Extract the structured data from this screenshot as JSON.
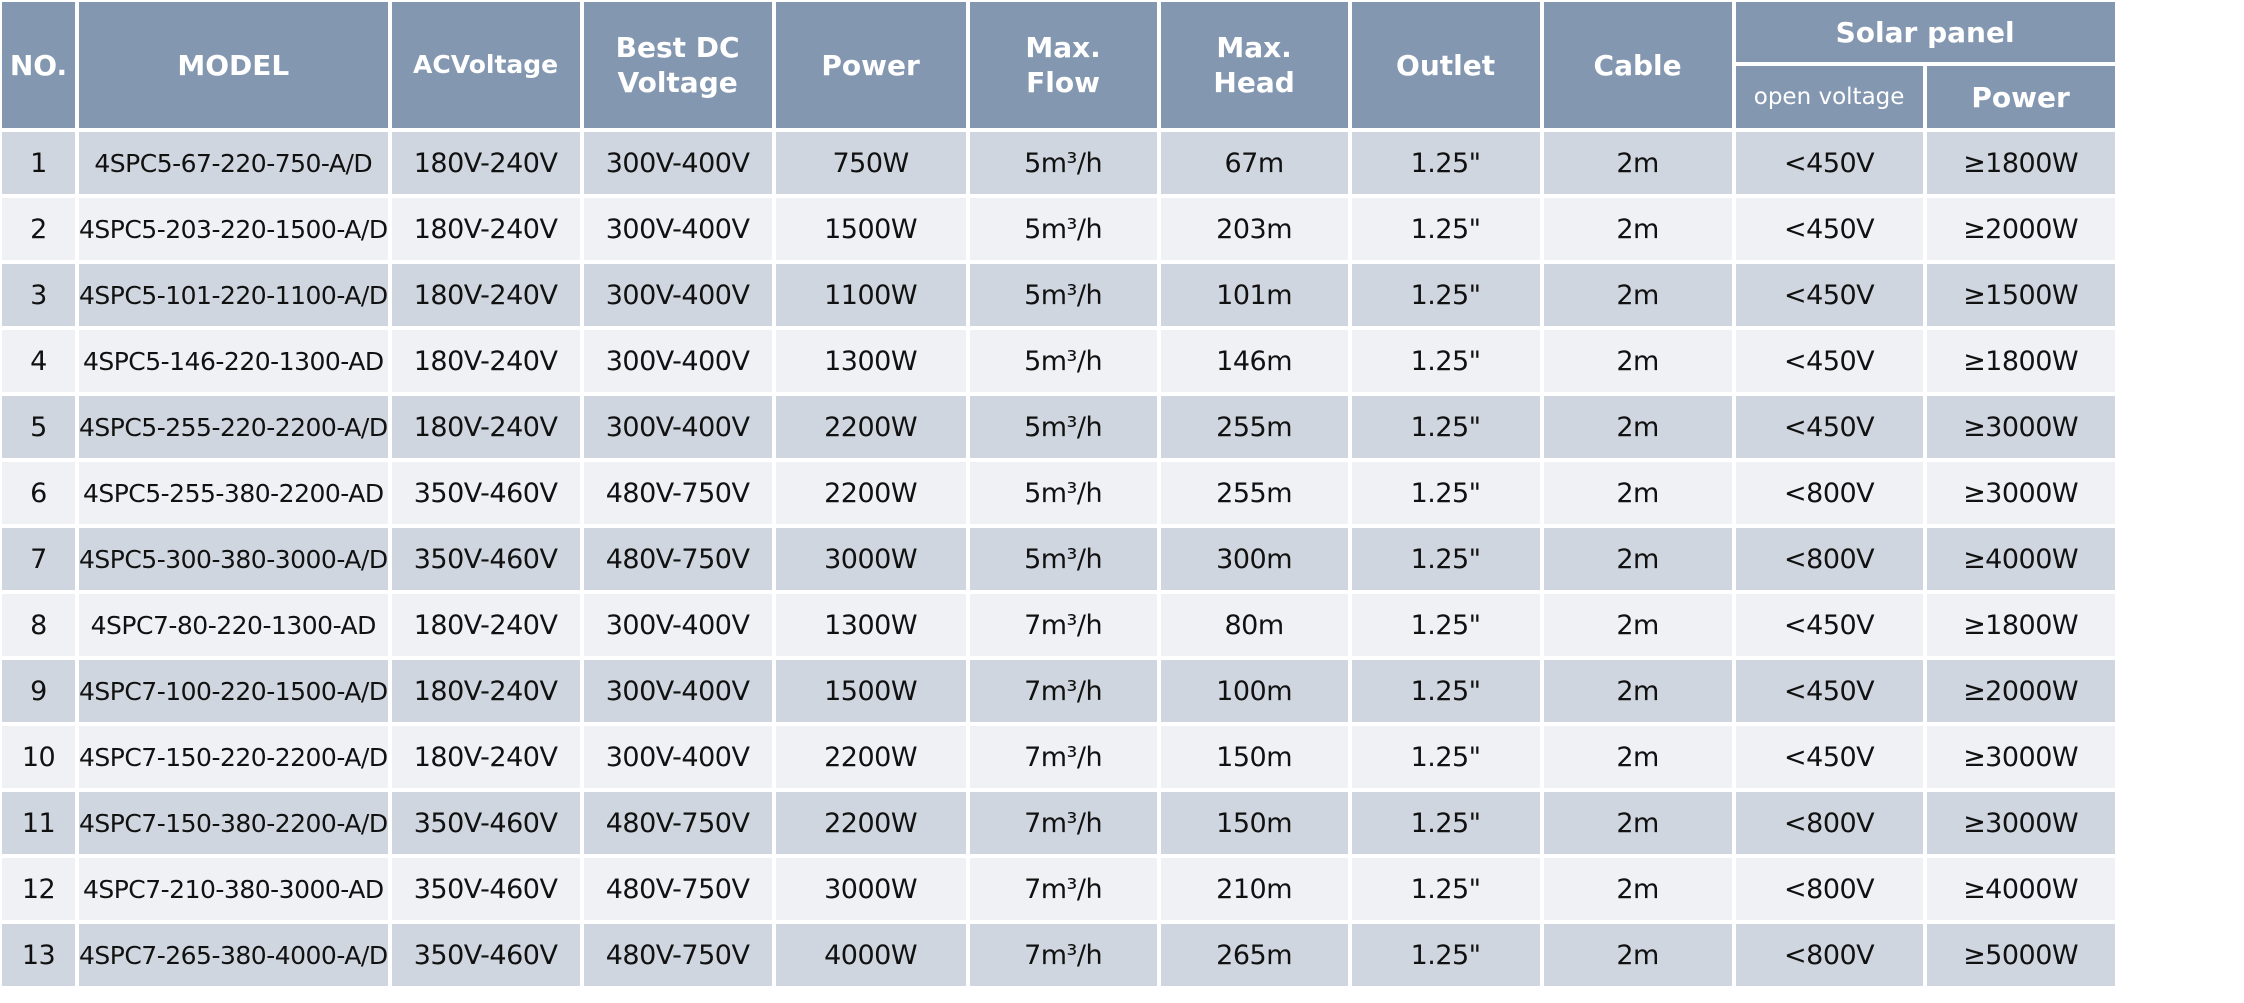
{
  "header": {
    "no": "NO.",
    "model": "MODEL",
    "ac_voltage": "ACVoltage",
    "best_dc_voltage": "Best DC Voltage",
    "power": "Power",
    "max_flow": "Max. Flow",
    "max_head": "Max. Head",
    "outlet": "Outlet",
    "cable": "Cable",
    "solar_panel": "Solar panel",
    "open_voltage": "open voltage",
    "solar_power": "Power"
  },
  "colors": {
    "header_bg": "#8497b0",
    "row_odd": "#cfd6df",
    "row_even": "#eff1f5"
  },
  "rows": [
    [
      "1",
      "4SPC5-67-220-750-A/D",
      "180V-240V",
      "300V-400V",
      "750W",
      "5m³/h",
      "67m",
      "1.25\"",
      "2m",
      "<450V",
      "≥1800W"
    ],
    [
      "2",
      "4SPC5-203-220-1500-A/D",
      "180V-240V",
      "300V-400V",
      "1500W",
      "5m³/h",
      "203m",
      "1.25\"",
      "2m",
      "<450V",
      "≥2000W"
    ],
    [
      "3",
      "4SPC5-101-220-1100-A/D",
      "180V-240V",
      "300V-400V",
      "1100W",
      "5m³/h",
      "101m",
      "1.25\"",
      "2m",
      "<450V",
      "≥1500W"
    ],
    [
      "4",
      "4SPC5-146-220-1300-AD",
      "180V-240V",
      "300V-400V",
      "1300W",
      "5m³/h",
      "146m",
      "1.25\"",
      "2m",
      "<450V",
      "≥1800W"
    ],
    [
      "5",
      "4SPC5-255-220-2200-A/D",
      "180V-240V",
      "300V-400V",
      "2200W",
      "5m³/h",
      "255m",
      "1.25\"",
      "2m",
      "<450V",
      "≥3000W"
    ],
    [
      "6",
      "4SPC5-255-380-2200-AD",
      "350V-460V",
      "480V-750V",
      "2200W",
      "5m³/h",
      "255m",
      "1.25\"",
      "2m",
      "<800V",
      "≥3000W"
    ],
    [
      "7",
      "4SPC5-300-380-3000-A/D",
      "350V-460V",
      "480V-750V",
      "3000W",
      "5m³/h",
      "300m",
      "1.25\"",
      "2m",
      "<800V",
      "≥4000W"
    ],
    [
      "8",
      "4SPC7-80-220-1300-AD",
      "180V-240V",
      "300V-400V",
      "1300W",
      "7m³/h",
      "80m",
      "1.25\"",
      "2m",
      "<450V",
      "≥1800W"
    ],
    [
      "9",
      "4SPC7-100-220-1500-A/D",
      "180V-240V",
      "300V-400V",
      "1500W",
      "7m³/h",
      "100m",
      "1.25\"",
      "2m",
      "<450V",
      "≥2000W"
    ],
    [
      "10",
      "4SPC7-150-220-2200-A/D",
      "180V-240V",
      "300V-400V",
      "2200W",
      "7m³/h",
      "150m",
      "1.25\"",
      "2m",
      "<450V",
      "≥3000W"
    ],
    [
      "11",
      "4SPC7-150-380-2200-A/D",
      "350V-460V",
      "480V-750V",
      "2200W",
      "7m³/h",
      "150m",
      "1.25\"",
      "2m",
      "<800V",
      "≥3000W"
    ],
    [
      "12",
      "4SPC7-210-380-3000-AD",
      "350V-460V",
      "480V-750V",
      "3000W",
      "7m³/h",
      "210m",
      "1.25\"",
      "2m",
      "<800V",
      "≥4000W"
    ],
    [
      "13",
      "4SPC7-265-380-4000-A/D",
      "350V-460V",
      "480V-750V",
      "4000W",
      "7m³/h",
      "265m",
      "1.25\"",
      "2m",
      "<800V",
      "≥5000W"
    ]
  ]
}
